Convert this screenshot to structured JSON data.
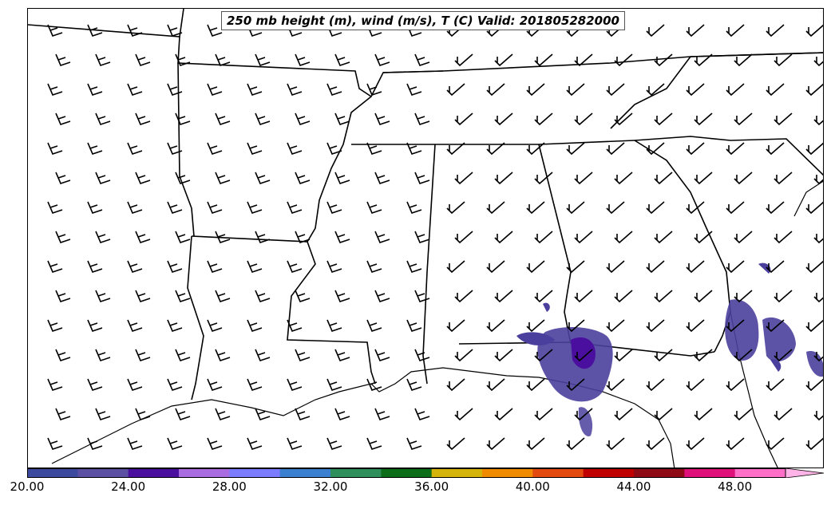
{
  "title": "250 mb height (m), wind (m/s), T (C) Valid: 201805282000",
  "colorbar": {
    "colors": [
      "#3b4a9e",
      "#5a4fa3",
      "#4b0f9f",
      "#a86be0",
      "#7b7bff",
      "#3b7fd0",
      "#2e8f5a",
      "#0d6e1a",
      "#d4b40a",
      "#f08a00",
      "#e24a10",
      "#c00000",
      "#8e0a14",
      "#e0107a",
      "#ff6ec7",
      "#ffb3e6"
    ],
    "tick_labels": [
      "20.00",
      "24.00",
      "28.00",
      "32.00",
      "36.00",
      "40.00",
      "44.00",
      "48.00"
    ]
  }
}
